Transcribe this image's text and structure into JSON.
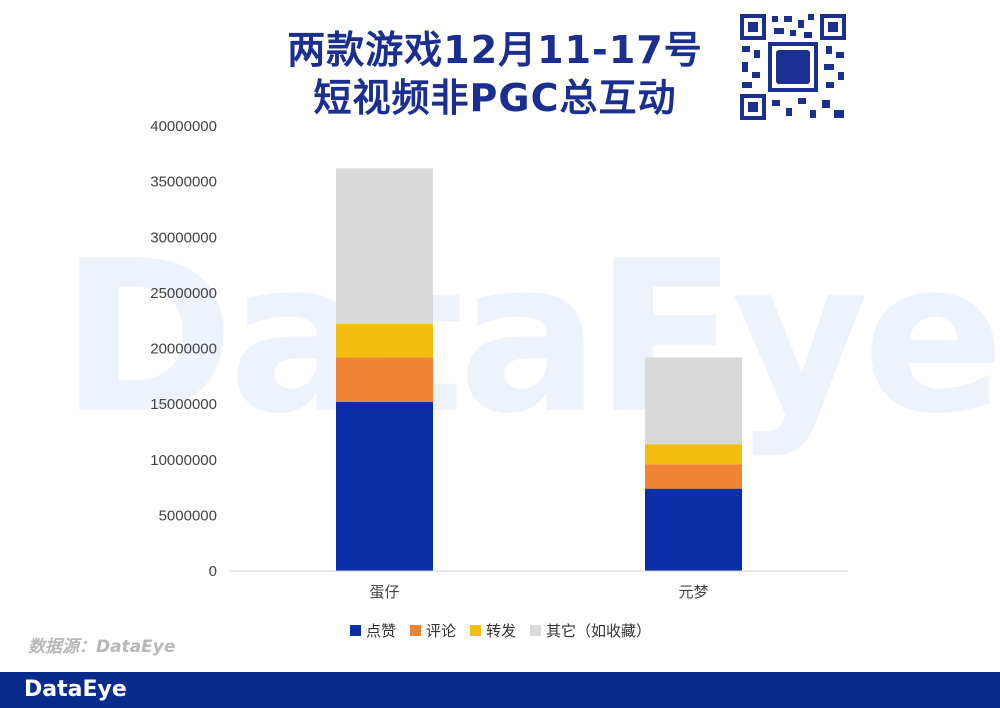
{
  "title": {
    "line1": "两款游戏12月11-17号",
    "line2": "短视频非PGC总互动"
  },
  "watermark": "DataEye",
  "source": "数据源：DataEye",
  "footer": {
    "logo": "DataEye"
  },
  "colors": {
    "likes": "#0a2ea3",
    "comments": "#ef8533",
    "shares": "#f2bd10",
    "others": "#d9d9d9",
    "brand": "#0b2a8e"
  },
  "chart_data": {
    "type": "bar",
    "stacked": true,
    "categories": [
      "蛋仔",
      "元梦"
    ],
    "series": [
      {
        "name": "点赞",
        "values": [
          15200000,
          7400000
        ]
      },
      {
        "name": "评论",
        "values": [
          4000000,
          2200000
        ]
      },
      {
        "name": "转发",
        "values": [
          3000000,
          1800000
        ]
      },
      {
        "name": "其它（如收藏）",
        "values": [
          14000000,
          7800000
        ]
      }
    ],
    "ylim": [
      0,
      40000000
    ],
    "yticks": [
      0,
      5000000,
      10000000,
      15000000,
      20000000,
      25000000,
      30000000,
      35000000,
      40000000
    ],
    "grid": false,
    "legend": "bottom"
  }
}
